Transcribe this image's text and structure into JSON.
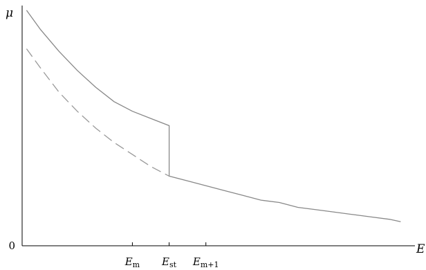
{
  "chart_data": {
    "type": "line",
    "xlabel": "E",
    "ylabel": "μ",
    "xlim": [
      0,
      10.5
    ],
    "ylim": [
      0,
      1.0
    ],
    "grid": false,
    "y_ticks": [
      {
        "value": 0,
        "label": "0"
      }
    ],
    "x_ticks": [
      {
        "value": 3.0,
        "main": "E",
        "sub": "m"
      },
      {
        "value": 4.0,
        "main": "E",
        "sub": "st"
      },
      {
        "value": 5.0,
        "main": "E",
        "sub": "m+1"
      }
    ],
    "series": [
      {
        "style": "solid",
        "color": "#888888",
        "x": [
          0.12,
          0.5,
          1.0,
          1.5,
          2.0,
          2.5,
          3.0,
          3.5,
          4.0,
          4.0,
          4.5,
          5.0,
          5.5,
          6.0,
          6.5,
          7.0,
          7.5,
          8.0,
          8.5,
          9.0,
          9.5,
          10.0,
          10.3
        ],
        "y": [
          0.98,
          0.9,
          0.81,
          0.73,
          0.66,
          0.6,
          0.56,
          0.53,
          0.5,
          0.29,
          0.27,
          0.25,
          0.23,
          0.21,
          0.19,
          0.18,
          0.16,
          0.15,
          0.14,
          0.13,
          0.12,
          0.11,
          0.1
        ]
      },
      {
        "style": "dashed",
        "color": "#999999",
        "x": [
          0.12,
          0.5,
          1.0,
          1.5,
          2.0,
          2.5,
          3.0,
          3.5,
          4.0
        ],
        "y": [
          0.82,
          0.74,
          0.64,
          0.56,
          0.49,
          0.43,
          0.38,
          0.33,
          0.29
        ]
      }
    ]
  }
}
